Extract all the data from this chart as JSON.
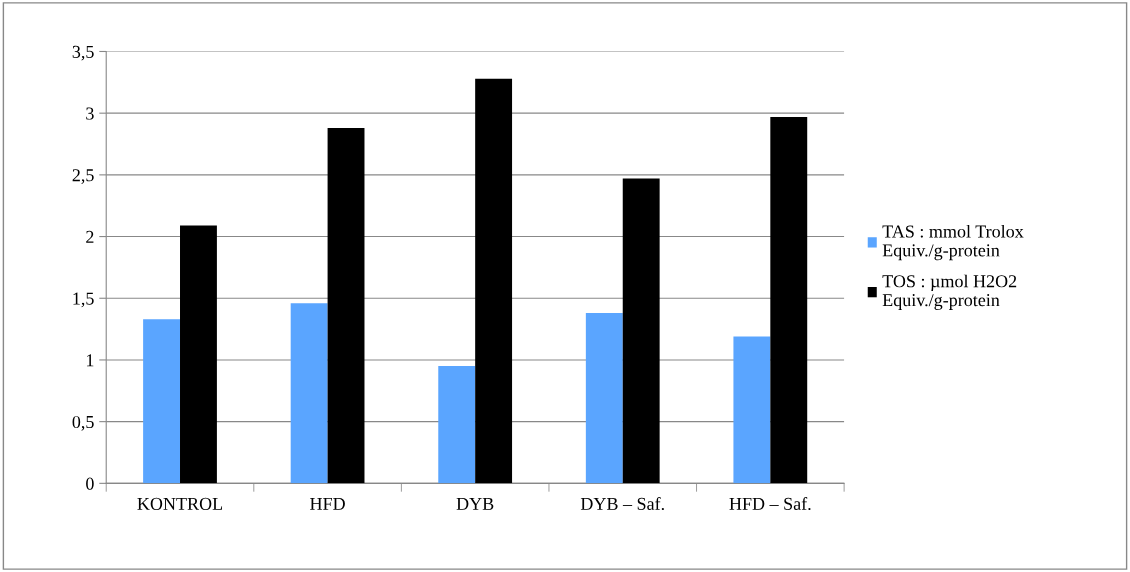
{
  "chart_data": {
    "type": "bar",
    "categories": [
      "KONTROL",
      "HFD",
      "DYB",
      "DYB – Saf.",
      "HFD – Saf."
    ],
    "series": [
      {
        "name": "TAS : mmol Trolox\nEquiv./g-protein",
        "color": "#5aa5ff",
        "values": [
          1.33,
          1.46,
          0.95,
          1.38,
          1.19
        ]
      },
      {
        "name": "TOS : µmol H2O2\nEquiv./g-protein",
        "color": "#000000",
        "values": [
          2.09,
          2.88,
          3.28,
          2.47,
          2.97
        ]
      }
    ],
    "ylim": [
      0,
      3.5
    ],
    "yticks": [
      {
        "value": 0,
        "label": "0"
      },
      {
        "value": 0.5,
        "label": "0,5"
      },
      {
        "value": 1,
        "label": "1"
      },
      {
        "value": 1.5,
        "label": "1,5"
      },
      {
        "value": 2,
        "label": "2"
      },
      {
        "value": 2.5,
        "label": "2,5"
      },
      {
        "value": 3,
        "label": "3"
      },
      {
        "value": 3.5,
        "label": "3,5"
      }
    ],
    "grid": "y",
    "legend": "right"
  }
}
